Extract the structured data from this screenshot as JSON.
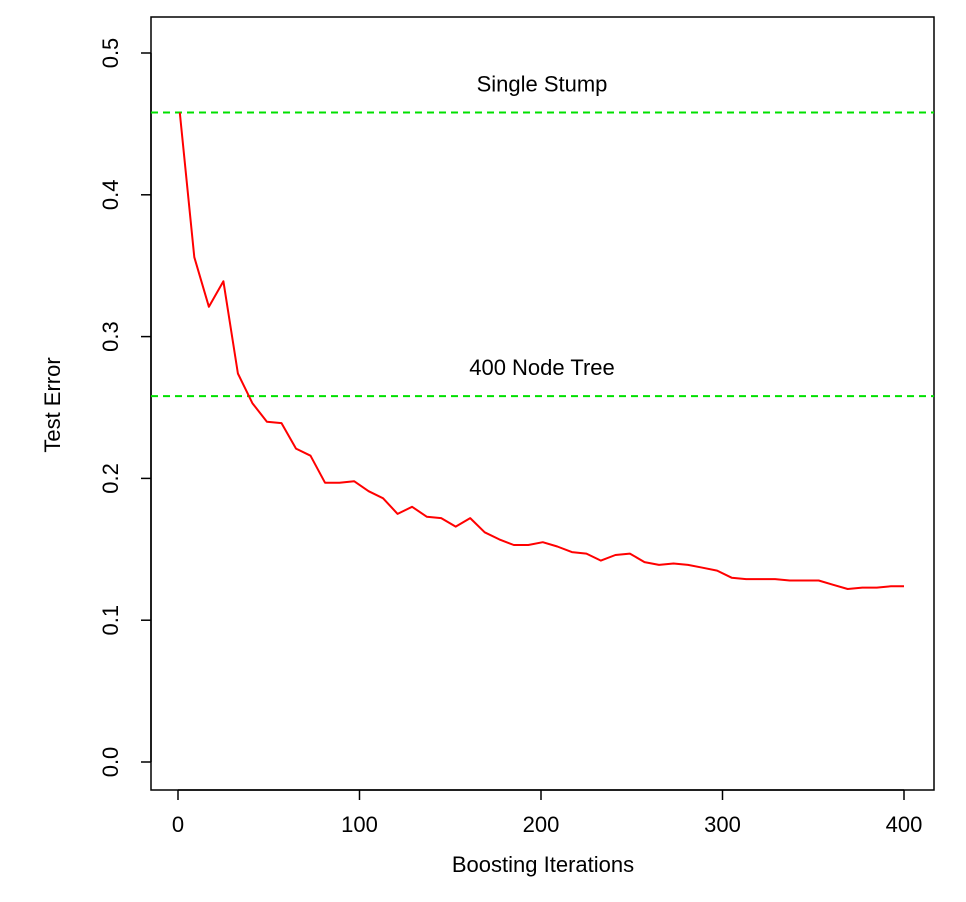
{
  "chart_data": {
    "type": "line",
    "title": "",
    "xlabel": "Boosting Iterations",
    "ylabel": "Test Error",
    "xlim": [
      0,
      400
    ],
    "ylim": [
      0.0,
      0.5
    ],
    "x_ticks": [
      0,
      100,
      200,
      300,
      400
    ],
    "x_tick_labels": [
      "0",
      "100",
      "200",
      "300",
      "400"
    ],
    "y_ticks": [
      0.0,
      0.1,
      0.2,
      0.3,
      0.4,
      0.5
    ],
    "y_tick_labels": [
      "0.0",
      "0.1",
      "0.2",
      "0.3",
      "0.4",
      "0.5"
    ],
    "grid": false,
    "series": [
      {
        "color": "#ff0000",
        "x": [
          1,
          9,
          17,
          25,
          33,
          41,
          49,
          57,
          65,
          73,
          81,
          89,
          97,
          105,
          113,
          121,
          129,
          137,
          145,
          153,
          161,
          169,
          177,
          185,
          193,
          201,
          209,
          217,
          225,
          233,
          241,
          249,
          257,
          265,
          273,
          281,
          289,
          297,
          305,
          313,
          321,
          329,
          337,
          345,
          353,
          361,
          369,
          377,
          385,
          393,
          400
        ],
        "values": [
          0.458,
          0.356,
          0.321,
          0.339,
          0.274,
          0.253,
          0.24,
          0.239,
          0.221,
          0.216,
          0.197,
          0.197,
          0.198,
          0.191,
          0.186,
          0.175,
          0.18,
          0.173,
          0.172,
          0.166,
          0.172,
          0.162,
          0.157,
          0.153,
          0.153,
          0.155,
          0.152,
          0.148,
          0.147,
          0.142,
          0.146,
          0.147,
          0.141,
          0.139,
          0.14,
          0.139,
          0.137,
          0.135,
          0.13,
          0.129,
          0.129,
          0.129,
          0.128,
          0.128,
          0.128,
          0.125,
          0.122,
          0.123,
          0.123,
          0.124,
          0.124
        ]
      }
    ],
    "reference_lines": [
      {
        "label": "Single Stump",
        "value": 0.458,
        "color": "#00e000",
        "style": "dashed"
      },
      {
        "label": "400 Node Tree",
        "value": 0.258,
        "color": "#00e000",
        "style": "dashed"
      }
    ]
  }
}
